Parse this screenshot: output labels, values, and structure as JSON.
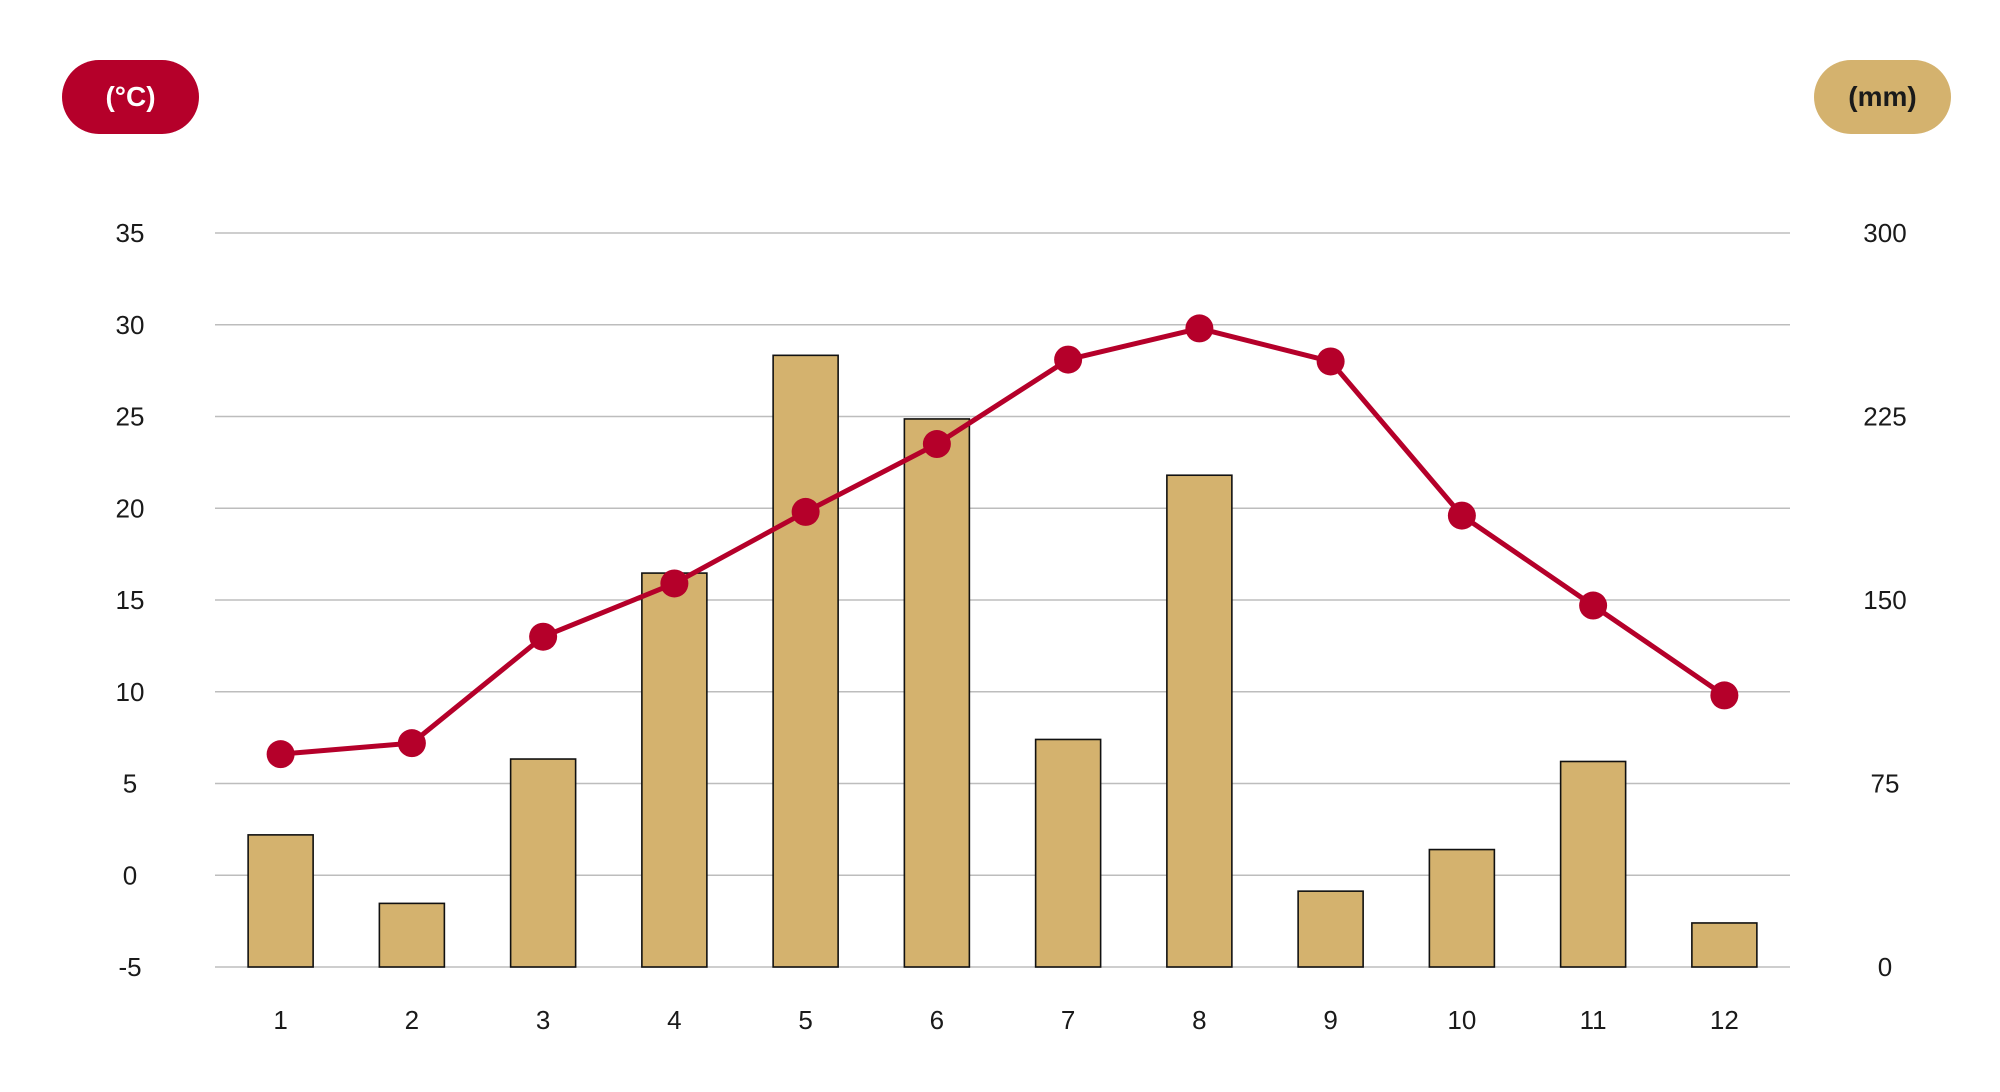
{
  "legend": {
    "temp_unit": "(°C)",
    "precip_unit": "(mm)"
  },
  "colors": {
    "temperature": "#b5002a",
    "precipitation": "#d4b26e",
    "grid": "#bdbdbd",
    "bar_stroke": "#111111"
  },
  "chart_data": {
    "type": "bar",
    "categories": [
      "1",
      "2",
      "3",
      "4",
      "5",
      "6",
      "7",
      "8",
      "9",
      "10",
      "11",
      "12"
    ],
    "series": [
      {
        "type": "bar",
        "axis": "right",
        "unit": "(mm)",
        "values": [
          54,
          26,
          85,
          161,
          250,
          224,
          93,
          201,
          31,
          48,
          84,
          18
        ]
      },
      {
        "type": "line",
        "axis": "left",
        "unit": "(°C)",
        "values": [
          6.6,
          7.2,
          13.0,
          15.9,
          19.8,
          23.5,
          28.1,
          29.8,
          28.0,
          19.6,
          14.7,
          9.8
        ]
      }
    ],
    "y_left": {
      "ticks": [
        35,
        30,
        25,
        20,
        15,
        10,
        5,
        0,
        -5
      ],
      "range": [
        -5,
        35
      ]
    },
    "y_right": {
      "ticks": [
        300,
        225,
        150,
        75,
        0
      ],
      "range": [
        0,
        300
      ]
    },
    "grid": true
  }
}
